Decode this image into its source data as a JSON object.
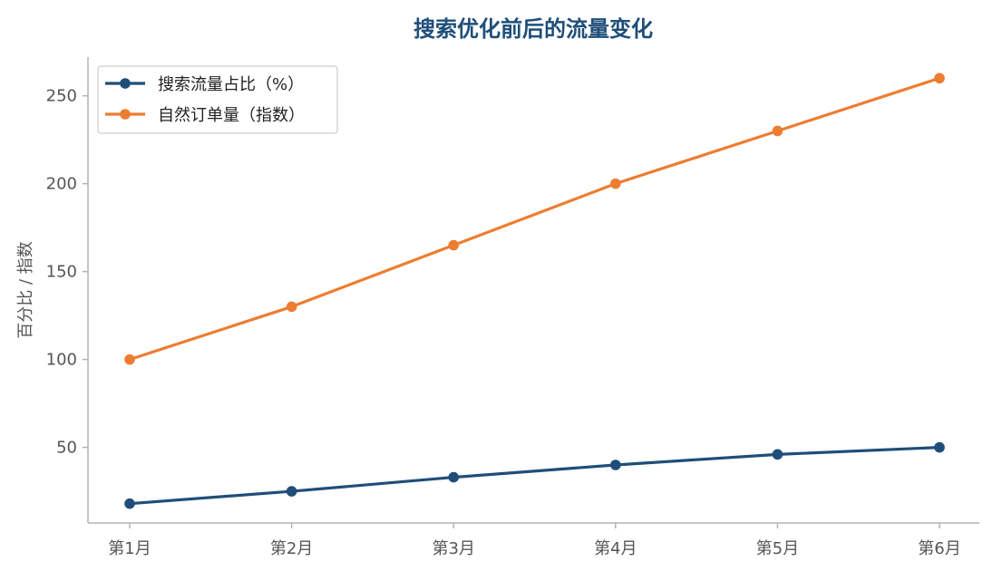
{
  "chart_data": {
    "type": "line",
    "title": "搜索优化前后的流量变化",
    "xlabel": "",
    "ylabel": "百分比 / 指数",
    "categories": [
      "第1月",
      "第2月",
      "第3月",
      "第4月",
      "第5月",
      "第6月"
    ],
    "series": [
      {
        "name": "搜索流量占比（%）",
        "values": [
          18,
          25,
          33,
          40,
          46,
          50
        ],
        "color": "#1f4e79"
      },
      {
        "name": "自然订单量（指数）",
        "values": [
          100,
          130,
          165,
          200,
          230,
          260
        ],
        "color": "#ed7d31"
      }
    ],
    "ylim": [
      7,
      272
    ],
    "yticks": [
      50,
      100,
      150,
      200,
      250
    ],
    "grid": false,
    "legend_position": "top-left"
  }
}
